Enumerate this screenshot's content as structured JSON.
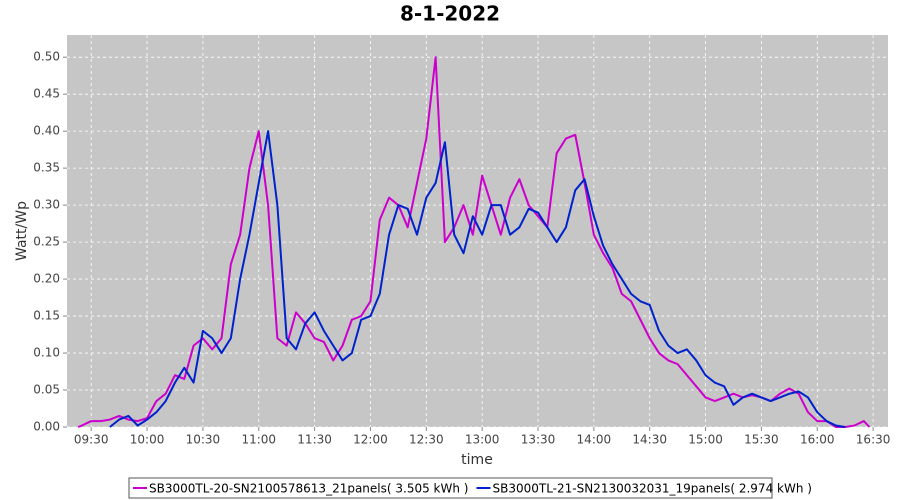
{
  "chart_data": {
    "type": "line",
    "title": "8-1-2022",
    "x_label": "time",
    "y_label": "Watt/Wp",
    "xlim": [
      "09:17",
      "16:38"
    ],
    "xticks": [
      "09:30",
      "10:00",
      "10:30",
      "11:00",
      "11:30",
      "12:00",
      "12:30",
      "13:00",
      "13:30",
      "14:00",
      "14:30",
      "15:00",
      "15:30",
      "16:00",
      "16:30"
    ],
    "ylim": [
      0,
      0.53
    ],
    "yticks": [
      {
        "value": 0,
        "label": "0.00"
      },
      {
        "value": 0.05,
        "label": "0.05"
      },
      {
        "value": 0.1,
        "label": "0.10"
      },
      {
        "value": 0.15,
        "label": "0.15"
      },
      {
        "value": 0.2,
        "label": "0.20"
      },
      {
        "value": 0.25,
        "label": "0.25"
      },
      {
        "value": 0.3,
        "label": "0.30"
      },
      {
        "value": 0.35,
        "label": "0.35"
      },
      {
        "value": 0.4,
        "label": "0.40"
      },
      {
        "value": 0.45,
        "label": "0.45"
      },
      {
        "value": 0.5,
        "label": "0.50"
      }
    ],
    "grid": true,
    "legend_position": "bottom",
    "series": [
      {
        "name": "SB3000TL-20-SN2100578613_21panels( 3.505 kWh )",
        "color": "#cc00cc",
        "x": [
          "09:23",
          "09:25",
          "09:30",
          "09:35",
          "09:40",
          "09:45",
          "09:50",
          "09:55",
          "10:00",
          "10:05",
          "10:10",
          "10:15",
          "10:20",
          "10:25",
          "10:30",
          "10:35",
          "10:40",
          "10:45",
          "10:50",
          "10:55",
          "11:00",
          "11:05",
          "11:10",
          "11:15",
          "11:20",
          "11:25",
          "11:30",
          "11:35",
          "11:40",
          "11:45",
          "11:50",
          "11:55",
          "12:00",
          "12:05",
          "12:10",
          "12:15",
          "12:20",
          "12:25",
          "12:30",
          "12:35",
          "12:40",
          "12:45",
          "12:50",
          "12:55",
          "13:00",
          "13:05",
          "13:10",
          "13:15",
          "13:20",
          "13:25",
          "13:30",
          "13:35",
          "13:40",
          "13:45",
          "13:50",
          "13:55",
          "14:00",
          "14:05",
          "14:10",
          "14:15",
          "14:20",
          "14:25",
          "14:30",
          "14:35",
          "14:40",
          "14:45",
          "14:50",
          "14:55",
          "15:00",
          "15:05",
          "15:10",
          "15:15",
          "15:20",
          "15:25",
          "15:30",
          "15:35",
          "15:40",
          "15:45",
          "15:50",
          "15:55",
          "16:00",
          "16:05",
          "16:10",
          "16:15",
          "16:20",
          "16:25",
          "16:28"
        ],
        "values": [
          0,
          0.002,
          0.008,
          0.008,
          0.01,
          0.015,
          0.01,
          0.008,
          0.012,
          0.035,
          0.045,
          0.07,
          0.065,
          0.11,
          0.12,
          0.105,
          0.12,
          0.22,
          0.26,
          0.35,
          0.4,
          0.3,
          0.12,
          0.11,
          0.155,
          0.14,
          0.12,
          0.115,
          0.09,
          0.11,
          0.145,
          0.15,
          0.17,
          0.28,
          0.31,
          0.3,
          0.27,
          0.33,
          0.39,
          0.5,
          0.25,
          0.27,
          0.3,
          0.26,
          0.34,
          0.3,
          0.26,
          0.31,
          0.335,
          0.3,
          0.285,
          0.27,
          0.37,
          0.39,
          0.395,
          0.33,
          0.26,
          0.235,
          0.215,
          0.18,
          0.17,
          0.145,
          0.12,
          0.1,
          0.09,
          0.085,
          0.07,
          0.055,
          0.04,
          0.035,
          0.04,
          0.045,
          0.04,
          0.043,
          0.04,
          0.035,
          0.045,
          0.052,
          0.045,
          0.02,
          0.008,
          0.008,
          0,
          0,
          0.002,
          0.008,
          0
        ]
      },
      {
        "name": "SB3000TL-21-SN2130032031_19panels( 2.974 kWh )",
        "color": "#0022cc",
        "x": [
          "09:40",
          "09:45",
          "09:50",
          "09:55",
          "10:00",
          "10:05",
          "10:10",
          "10:15",
          "10:20",
          "10:25",
          "10:30",
          "10:35",
          "10:40",
          "10:45",
          "10:50",
          "10:55",
          "11:00",
          "11:05",
          "11:10",
          "11:15",
          "11:20",
          "11:25",
          "11:30",
          "11:35",
          "11:40",
          "11:45",
          "11:50",
          "11:55",
          "12:00",
          "12:05",
          "12:10",
          "12:15",
          "12:20",
          "12:25",
          "12:30",
          "12:35",
          "12:40",
          "12:45",
          "12:50",
          "12:55",
          "13:00",
          "13:05",
          "13:10",
          "13:15",
          "13:20",
          "13:25",
          "13:30",
          "13:35",
          "13:40",
          "13:45",
          "13:50",
          "13:55",
          "14:00",
          "14:05",
          "14:10",
          "14:15",
          "14:20",
          "14:25",
          "14:30",
          "14:35",
          "14:40",
          "14:45",
          "14:50",
          "14:55",
          "15:00",
          "15:05",
          "15:10",
          "15:15",
          "15:20",
          "15:25",
          "15:30",
          "15:35",
          "15:40",
          "15:45",
          "15:50",
          "15:55",
          "16:00",
          "16:05",
          "16:10",
          "16:15"
        ],
        "values": [
          0,
          0.01,
          0.015,
          0.002,
          0.01,
          0.02,
          0.035,
          0.06,
          0.08,
          0.06,
          0.13,
          0.12,
          0.1,
          0.12,
          0.2,
          0.26,
          0.33,
          0.4,
          0.3,
          0.12,
          0.105,
          0.14,
          0.155,
          0.13,
          0.11,
          0.09,
          0.1,
          0.145,
          0.15,
          0.18,
          0.26,
          0.3,
          0.295,
          0.26,
          0.31,
          0.33,
          0.385,
          0.26,
          0.235,
          0.285,
          0.26,
          0.3,
          0.3,
          0.26,
          0.27,
          0.295,
          0.29,
          0.27,
          0.25,
          0.27,
          0.32,
          0.335,
          0.285,
          0.245,
          0.22,
          0.2,
          0.18,
          0.17,
          0.165,
          0.13,
          0.11,
          0.1,
          0.105,
          0.09,
          0.07,
          0.06,
          0.055,
          0.03,
          0.04,
          0.045,
          0.04,
          0.035,
          0.04,
          0.045,
          0.048,
          0.04,
          0.02,
          0.008,
          0.002,
          0
        ]
      }
    ]
  }
}
